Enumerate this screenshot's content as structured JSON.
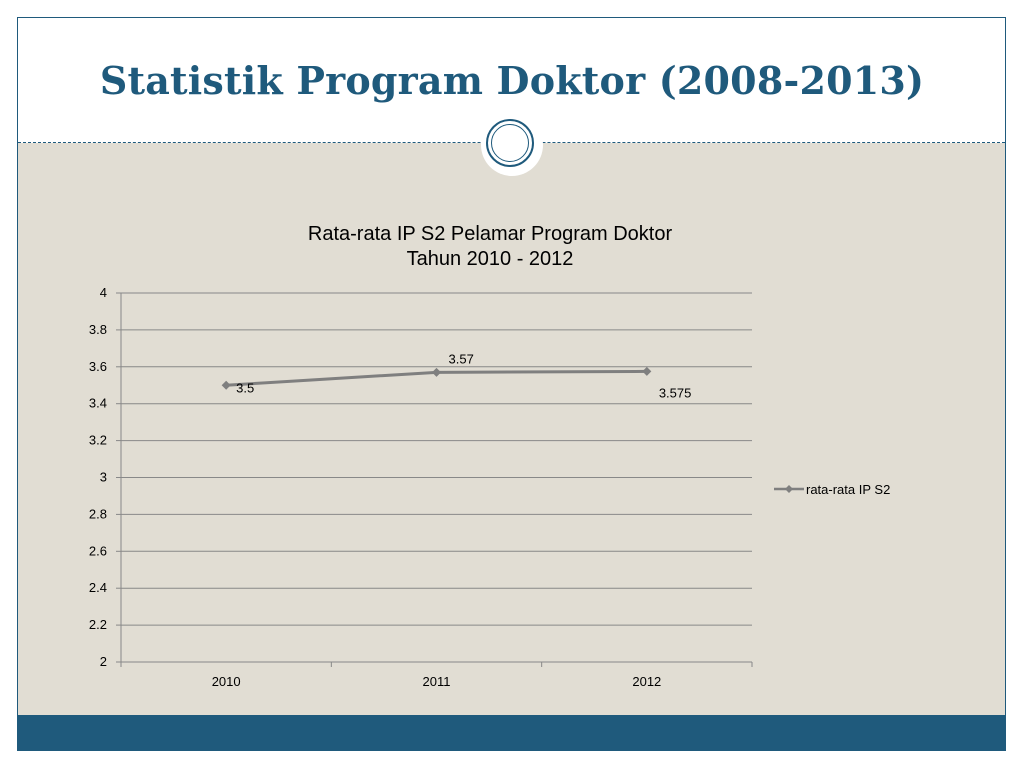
{
  "slide": {
    "title": "Statistik Program Doktor (2008-2013)"
  },
  "colors": {
    "accent": "#1f5a7c",
    "content_bg": "#e1ddd3",
    "series_line": "#7f7f7f",
    "gridline": "#888888"
  },
  "chart_data": {
    "type": "line",
    "title_line1": "Rata-rata IP S2 Pelamar Program Doktor",
    "title_line2": "Tahun 2010 - 2012",
    "categories": [
      "2010",
      "2011",
      "2012"
    ],
    "series": [
      {
        "name": "rata-rata IP S2",
        "values": [
          3.5,
          3.57,
          3.575
        ],
        "labels": [
          "3.5",
          "3.57",
          "3.575"
        ]
      }
    ],
    "ylim": [
      2,
      4
    ],
    "yticks": [
      "2",
      "2.2",
      "2.4",
      "2.6",
      "2.8",
      "3",
      "3.2",
      "3.4",
      "3.6",
      "3.8",
      "4"
    ],
    "grid": true,
    "legend_position": "right",
    "marker": "diamond"
  }
}
